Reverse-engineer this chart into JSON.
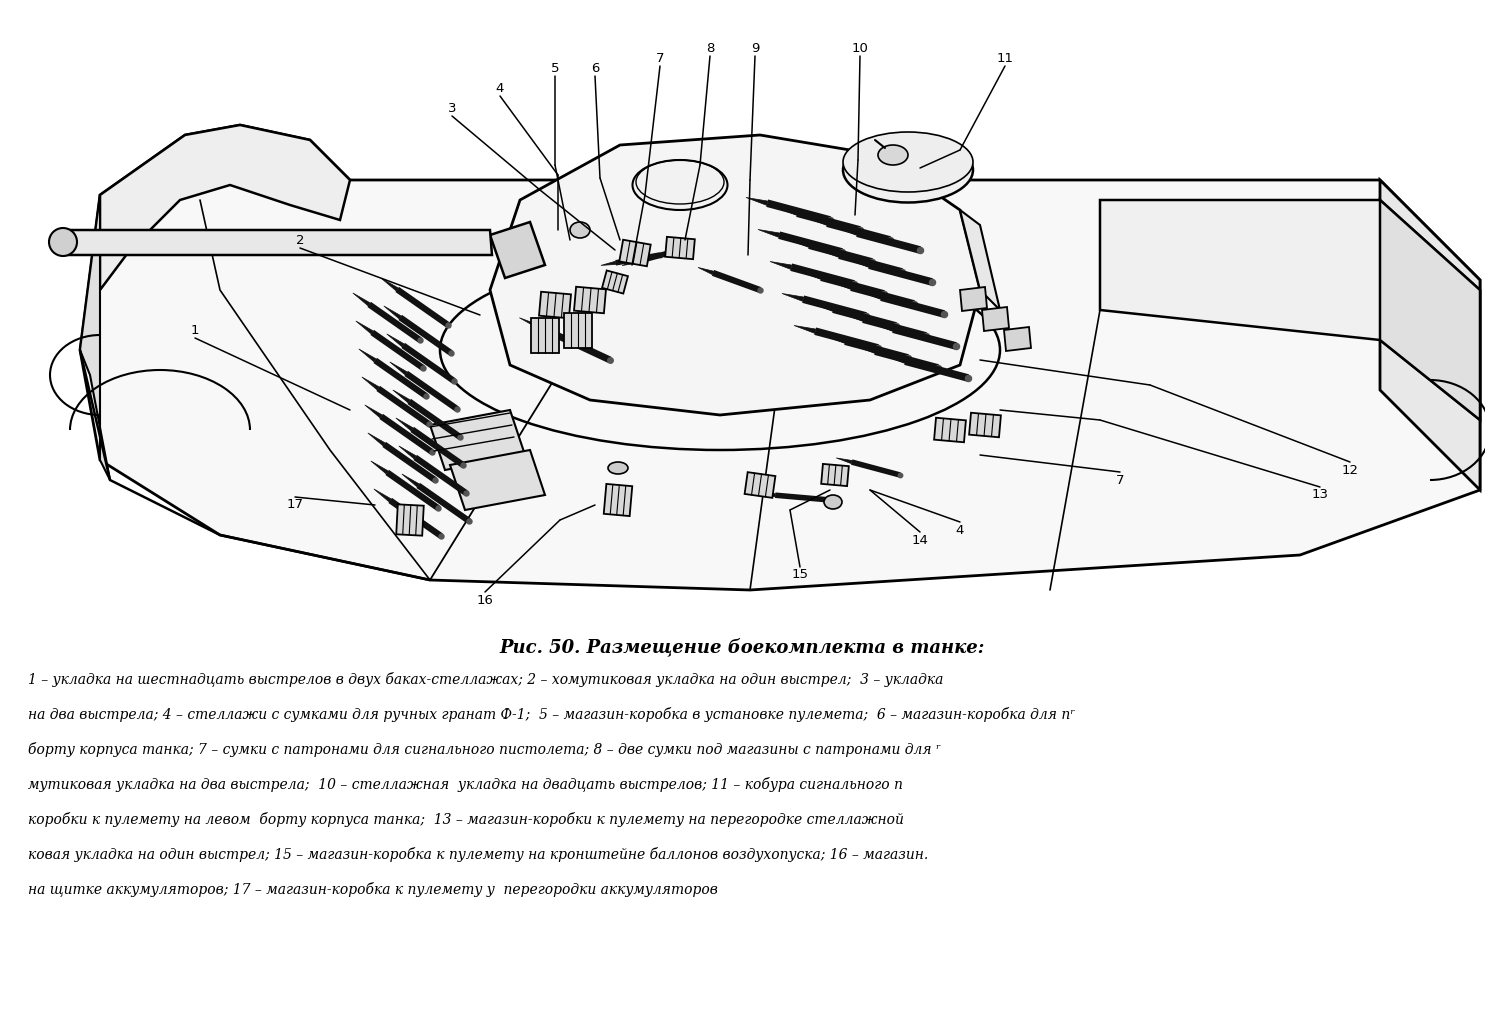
{
  "title": "Рис. 50. Размещение боекомплекта в танке:",
  "caption_lines": [
    "1 – укладка на шестнадцать выстрелов в двух баках-стеллажах; 2 – хомутиковая укладка на один выстрел;  3 – укладка",
    "на два выстрела; 4 – стеллажи с сумками для ручных гранат Ф-1;  5 – магазин-коробка в установке пулемета;  6 – магазин-коробка для пʳ",
    "борту корпуса танка; 7 – сумки с патронами для сигнального пистолета; 8 – две сумки под магазины с патронами для ʳ",
    "мутиковая укладка на два выстрела;  10 – стеллажная  укладка на двадцать выстрелов; 11 – кобура сигнального п",
    "коробки к пулемету на левом  борту корпуса танка;  13 – магазин-коробки к пулемету на перегородке стеллажной",
    "ковая укладка на один выстрел; 15 – магазин-коробка к пулемету на кронштейне баллонов воздухопуска; 16 – магазин.",
    "на щитке аккумуляторов; 17 – магазин-коробка к пулемету у  перегородки аккумуляторов"
  ],
  "bg_color": "#ffffff",
  "text_color": "#000000",
  "title_fontsize": 13,
  "caption_fontsize": 10.0
}
